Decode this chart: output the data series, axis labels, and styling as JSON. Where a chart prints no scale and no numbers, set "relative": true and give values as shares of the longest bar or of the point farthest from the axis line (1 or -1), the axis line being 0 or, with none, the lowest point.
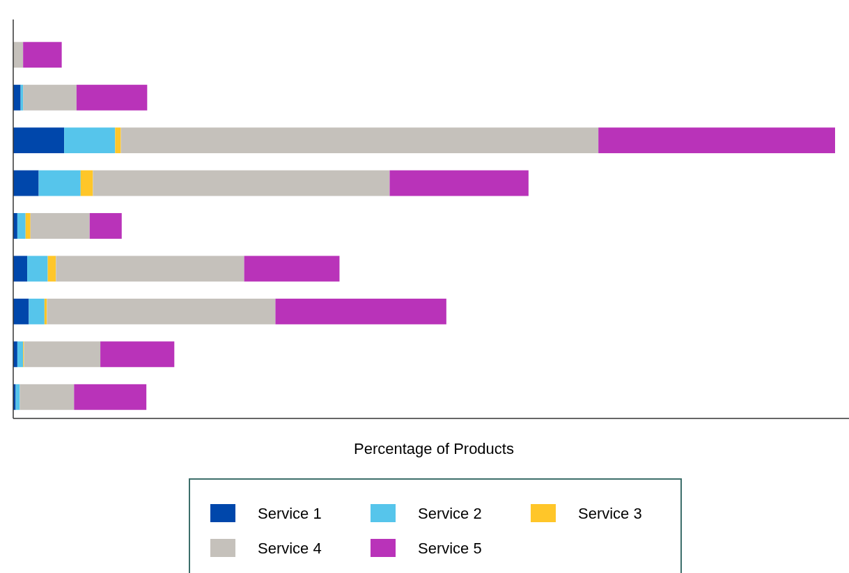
{
  "chart_data": {
    "type": "bar",
    "orientation": "horizontal",
    "stacked": true,
    "relative": true,
    "xlabel": "Percentage of Products",
    "legend": "bottom",
    "categories": [
      null,
      null,
      null,
      null,
      null,
      null,
      null,
      null,
      null
    ],
    "series": [
      {
        "name": "Service 1",
        "color": "#0047ab",
        "values": [
          0,
          0.009,
          0.062,
          0.031,
          0.005,
          0.017,
          0.019,
          0.005,
          0.003
        ]
      },
      {
        "name": "Service 2",
        "color": "#56c5eb",
        "values": [
          0,
          0.003,
          0.062,
          0.051,
          0.01,
          0.025,
          0.019,
          0.007,
          0.005
        ]
      },
      {
        "name": "Service 3",
        "color": "#ffc629",
        "values": [
          0,
          0,
          0.007,
          0.015,
          0.006,
          0.01,
          0.003,
          0.001,
          0
        ]
      },
      {
        "name": "Service 4",
        "color": "#c5c1bb",
        "values": [
          0.012,
          0.065,
          0.581,
          0.361,
          0.072,
          0.229,
          0.278,
          0.093,
          0.066
        ]
      },
      {
        "name": "Service 5",
        "color": "#b933b9",
        "values": [
          0.047,
          0.086,
          0.288,
          0.169,
          0.039,
          0.116,
          0.208,
          0.09,
          0.088
        ]
      }
    ]
  }
}
